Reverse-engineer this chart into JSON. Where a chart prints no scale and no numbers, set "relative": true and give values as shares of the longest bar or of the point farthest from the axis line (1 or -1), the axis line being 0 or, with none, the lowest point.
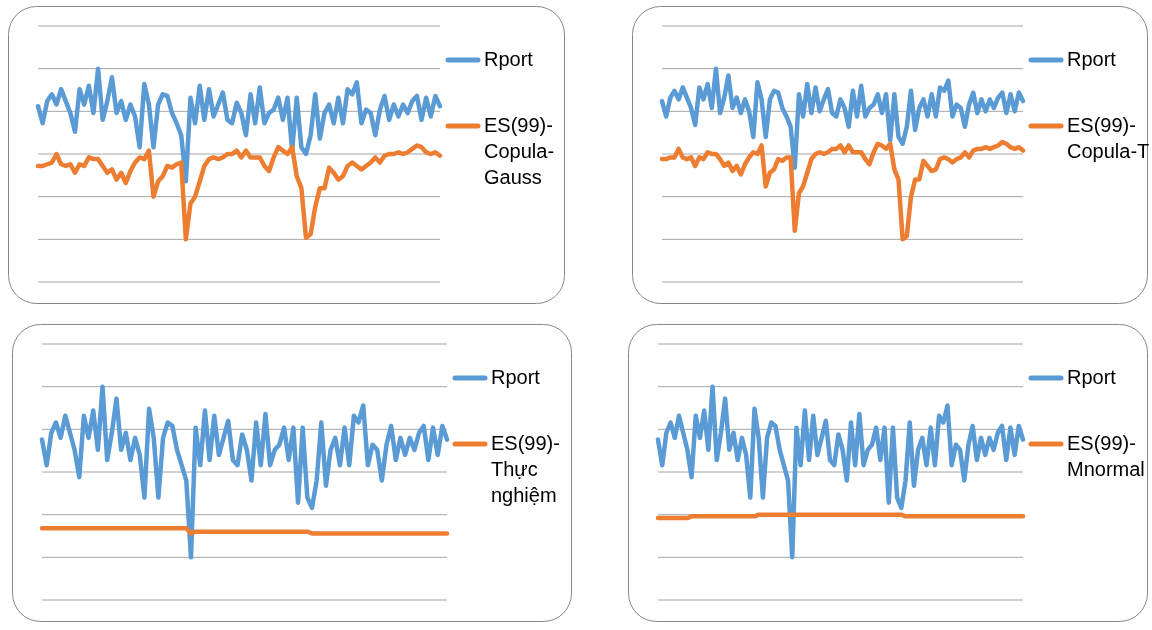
{
  "chart_data": [
    {
      "type": "line",
      "relative": true,
      "grid": true,
      "legend": "right",
      "categories": [
        null,
        null,
        null,
        null,
        null,
        null,
        null,
        null,
        null,
        null,
        null,
        null,
        null,
        null,
        null,
        null,
        null,
        null,
        null,
        null,
        null,
        null,
        null,
        null,
        null,
        null,
        null,
        null,
        null,
        null,
        null,
        null,
        null,
        null,
        null,
        null,
        null,
        null,
        null,
        null,
        null,
        null,
        null,
        null,
        null,
        null,
        null,
        null,
        null,
        null,
        null,
        null,
        null,
        null,
        null,
        null,
        null,
        null,
        null,
        null,
        null,
        null,
        null,
        null,
        null,
        null,
        null,
        null,
        null,
        null,
        null,
        null,
        null,
        null,
        null,
        null,
        null,
        null,
        null,
        null,
        null,
        null,
        null,
        null,
        null,
        null,
        null,
        null
      ],
      "series": [
        {
          "name": "Rport",
          "color": "#5b9bd5",
          "values": [
            0.78,
            0.68,
            0.81,
            0.85,
            0.79,
            0.88,
            0.81,
            0.74,
            0.63,
            0.88,
            0.79,
            0.9,
            0.74,
            1.0,
            0.7,
            0.81,
            0.95,
            0.74,
            0.81,
            0.7,
            0.79,
            0.72,
            0.54,
            0.91,
            0.79,
            0.54,
            0.79,
            0.85,
            0.84,
            0.74,
            0.68,
            0.61,
            0.34,
            0.83,
            0.68,
            0.9,
            0.7,
            0.88,
            0.72,
            0.79,
            0.86,
            0.7,
            0.68,
            0.8,
            0.74,
            0.61,
            0.85,
            0.68,
            0.89,
            0.68,
            0.74,
            0.76,
            0.83,
            0.7,
            0.83,
            0.52,
            0.83,
            0.54,
            0.5,
            0.61,
            0.85,
            0.59,
            0.74,
            0.79,
            0.68,
            0.83,
            0.68,
            0.88,
            0.85,
            0.92,
            0.68,
            0.76,
            0.74,
            0.61,
            0.76,
            0.84,
            0.7,
            0.79,
            0.72,
            0.79,
            0.74,
            0.81,
            0.84,
            0.7,
            0.83,
            0.72,
            0.84,
            0.78
          ]
        },
        {
          "name": "ES(99)-Copula-Gauss",
          "color": "#ed7d31",
          "values": [
            0.43,
            0.43,
            0.44,
            0.45,
            0.5,
            0.44,
            0.43,
            0.44,
            0.39,
            0.44,
            0.43,
            0.48,
            0.47,
            0.47,
            0.43,
            0.39,
            0.41,
            0.35,
            0.39,
            0.33,
            0.4,
            0.45,
            0.48,
            0.47,
            0.52,
            0.25,
            0.34,
            0.37,
            0.43,
            0.42,
            0.44,
            0.45,
            0,
            0.21,
            0.25,
            0.34,
            0.43,
            0.47,
            0.48,
            0.47,
            0.48,
            0.5,
            0.5,
            0.52,
            0.48,
            0.52,
            0.48,
            0.48,
            0.48,
            0.43,
            0.4,
            0.48,
            0.54,
            0.52,
            0.5,
            0.54,
            0.37,
            0.3,
            0.01,
            0.03,
            0.19,
            0.3,
            0.3,
            0.42,
            0.39,
            0.35,
            0.37,
            0.43,
            0.45,
            0.43,
            0.41,
            0.43,
            0.45,
            0.48,
            0.45,
            0.49,
            0.5,
            0.5,
            0.51,
            0.5,
            0.51,
            0.53,
            0.55,
            0.54,
            0.51,
            0.5,
            0.51,
            0.49
          ]
        }
      ]
    },
    {
      "type": "line",
      "relative": true,
      "grid": true,
      "legend": "right",
      "categories": [
        null,
        null,
        null,
        null,
        null,
        null,
        null,
        null,
        null,
        null,
        null,
        null,
        null,
        null,
        null,
        null,
        null,
        null,
        null,
        null,
        null,
        null,
        null,
        null,
        null,
        null,
        null,
        null,
        null,
        null,
        null,
        null,
        null,
        null,
        null,
        null,
        null,
        null,
        null,
        null,
        null,
        null,
        null,
        null,
        null,
        null,
        null,
        null,
        null,
        null,
        null,
        null,
        null,
        null,
        null,
        null,
        null,
        null,
        null,
        null,
        null,
        null,
        null,
        null,
        null,
        null,
        null,
        null,
        null,
        null,
        null,
        null,
        null,
        null,
        null,
        null,
        null,
        null,
        null,
        null,
        null,
        null,
        null,
        null,
        null,
        null,
        null,
        null
      ],
      "series": [
        {
          "name": "Rport",
          "color": "#5b9bd5",
          "values": [
            0.81,
            0.72,
            0.83,
            0.87,
            0.82,
            0.89,
            0.83,
            0.77,
            0.67,
            0.89,
            0.82,
            0.91,
            0.77,
            1.0,
            0.74,
            0.83,
            0.96,
            0.77,
            0.83,
            0.74,
            0.82,
            0.75,
            0.6,
            0.92,
            0.82,
            0.6,
            0.82,
            0.87,
            0.86,
            0.77,
            0.72,
            0.66,
            0.42,
            0.85,
            0.72,
            0.91,
            0.74,
            0.89,
            0.75,
            0.82,
            0.88,
            0.74,
            0.72,
            0.82,
            0.77,
            0.66,
            0.87,
            0.72,
            0.9,
            0.72,
            0.77,
            0.79,
            0.85,
            0.74,
            0.85,
            0.58,
            0.85,
            0.6,
            0.56,
            0.66,
            0.87,
            0.64,
            0.77,
            0.82,
            0.72,
            0.85,
            0.72,
            0.89,
            0.87,
            0.93,
            0.72,
            0.79,
            0.77,
            0.66,
            0.79,
            0.86,
            0.74,
            0.82,
            0.75,
            0.82,
            0.77,
            0.83,
            0.86,
            0.74,
            0.85,
            0.75,
            0.86,
            0.81
          ]
        },
        {
          "name": "ES(99)-Copula-T",
          "color": "#ed7d31",
          "values": [
            0.47,
            0.47,
            0.48,
            0.48,
            0.53,
            0.48,
            0.47,
            0.48,
            0.43,
            0.48,
            0.47,
            0.51,
            0.5,
            0.5,
            0.47,
            0.43,
            0.45,
            0.4,
            0.43,
            0.38,
            0.44,
            0.48,
            0.51,
            0.5,
            0.55,
            0.31,
            0.39,
            0.41,
            0.47,
            0.46,
            0.48,
            0.48,
            0.05,
            0.27,
            0.31,
            0.39,
            0.47,
            0.5,
            0.51,
            0.5,
            0.51,
            0.53,
            0.53,
            0.55,
            0.51,
            0.55,
            0.51,
            0.51,
            0.51,
            0.47,
            0.44,
            0.51,
            0.56,
            0.55,
            0.53,
            0.56,
            0.41,
            0.35,
            0,
            0.02,
            0.25,
            0.35,
            0.35,
            0.46,
            0.43,
            0.4,
            0.41,
            0.47,
            0.48,
            0.47,
            0.45,
            0.47,
            0.48,
            0.51,
            0.48,
            0.52,
            0.53,
            0.53,
            0.54,
            0.53,
            0.54,
            0.55,
            0.57,
            0.56,
            0.54,
            0.53,
            0.54,
            0.52
          ]
        }
      ]
    },
    {
      "type": "line",
      "relative": true,
      "grid": true,
      "legend": "right",
      "categories": [
        null,
        null,
        null,
        null,
        null,
        null,
        null,
        null,
        null,
        null,
        null,
        null,
        null,
        null,
        null,
        null,
        null,
        null,
        null,
        null,
        null,
        null,
        null,
        null,
        null,
        null,
        null,
        null,
        null,
        null,
        null,
        null,
        null,
        null,
        null,
        null,
        null,
        null,
        null,
        null,
        null,
        null,
        null,
        null,
        null,
        null,
        null,
        null,
        null,
        null,
        null,
        null,
        null,
        null,
        null,
        null,
        null,
        null,
        null,
        null,
        null,
        null,
        null,
        null,
        null,
        null,
        null,
        null,
        null,
        null,
        null,
        null,
        null,
        null,
        null,
        null,
        null,
        null,
        null,
        null,
        null,
        null,
        null,
        null,
        null,
        null,
        null,
        null
      ],
      "series": [
        {
          "name": "Rport",
          "color": "#5b9bd5",
          "values": [
            0.69,
            0.54,
            0.73,
            0.79,
            0.7,
            0.83,
            0.73,
            0.63,
            0.47,
            0.83,
            0.7,
            0.86,
            0.63,
            1.0,
            0.57,
            0.73,
            0.93,
            0.63,
            0.73,
            0.57,
            0.7,
            0.6,
            0.35,
            0.87,
            0.7,
            0.35,
            0.7,
            0.79,
            0.77,
            0.63,
            0.54,
            0.45,
            0,
            0.76,
            0.54,
            0.86,
            0.57,
            0.83,
            0.6,
            0.7,
            0.8,
            0.57,
            0.54,
            0.72,
            0.63,
            0.45,
            0.79,
            0.54,
            0.84,
            0.54,
            0.63,
            0.66,
            0.76,
            0.57,
            0.76,
            0.32,
            0.76,
            0.35,
            0.29,
            0.45,
            0.79,
            0.42,
            0.63,
            0.7,
            0.54,
            0.76,
            0.54,
            0.83,
            0.79,
            0.89,
            0.54,
            0.66,
            0.63,
            0.45,
            0.66,
            0.77,
            0.57,
            0.7,
            0.6,
            0.7,
            0.63,
            0.73,
            0.77,
            0.57,
            0.76,
            0.6,
            0.77,
            0.69
          ]
        },
        {
          "name": "ES(99)-Thực nghiệm",
          "color": "#ed7d31",
          "values": [
            0.17,
            0.17,
            0.17,
            0.17,
            0.17,
            0.17,
            0.17,
            0.17,
            0.17,
            0.17,
            0.17,
            0.17,
            0.17,
            0.17,
            0.17,
            0.17,
            0.17,
            0.17,
            0.17,
            0.17,
            0.17,
            0.17,
            0.17,
            0.17,
            0.17,
            0.17,
            0.17,
            0.17,
            0.17,
            0.17,
            0.17,
            0.17,
            0.14,
            0.15,
            0.15,
            0.15,
            0.15,
            0.15,
            0.15,
            0.15,
            0.15,
            0.15,
            0.15,
            0.15,
            0.15,
            0.15,
            0.15,
            0.15,
            0.15,
            0.15,
            0.15,
            0.15,
            0.15,
            0.15,
            0.15,
            0.15,
            0.15,
            0.15,
            0.14,
            0.14,
            0.14,
            0.14,
            0.14,
            0.14,
            0.14,
            0.14,
            0.14,
            0.14,
            0.14,
            0.14,
            0.14,
            0.14,
            0.14,
            0.14,
            0.14,
            0.14,
            0.14,
            0.14,
            0.14,
            0.14,
            0.14,
            0.14,
            0.14,
            0.14,
            0.14,
            0.14,
            0.14,
            0.14
          ]
        }
      ]
    },
    {
      "type": "line",
      "relative": true,
      "grid": true,
      "legend": "right",
      "categories": [
        null,
        null,
        null,
        null,
        null,
        null,
        null,
        null,
        null,
        null,
        null,
        null,
        null,
        null,
        null,
        null,
        null,
        null,
        null,
        null,
        null,
        null,
        null,
        null,
        null,
        null,
        null,
        null,
        null,
        null,
        null,
        null,
        null,
        null,
        null,
        null,
        null,
        null,
        null,
        null,
        null,
        null,
        null,
        null,
        null,
        null,
        null,
        null,
        null,
        null,
        null,
        null,
        null,
        null,
        null,
        null,
        null,
        null,
        null,
        null,
        null,
        null,
        null,
        null,
        null,
        null,
        null,
        null,
        null,
        null,
        null,
        null,
        null,
        null,
        null,
        null,
        null,
        null,
        null,
        null,
        null,
        null,
        null,
        null,
        null,
        null,
        null,
        null
      ],
      "series": [
        {
          "name": "Rport",
          "color": "#5b9bd5",
          "values": [
            0.69,
            0.54,
            0.73,
            0.79,
            0.7,
            0.83,
            0.73,
            0.63,
            0.47,
            0.83,
            0.7,
            0.86,
            0.63,
            1.0,
            0.57,
            0.73,
            0.93,
            0.63,
            0.73,
            0.57,
            0.7,
            0.6,
            0.35,
            0.87,
            0.7,
            0.35,
            0.7,
            0.79,
            0.77,
            0.63,
            0.54,
            0.45,
            0,
            0.76,
            0.54,
            0.86,
            0.57,
            0.83,
            0.6,
            0.7,
            0.8,
            0.57,
            0.54,
            0.72,
            0.63,
            0.45,
            0.79,
            0.54,
            0.84,
            0.54,
            0.63,
            0.66,
            0.76,
            0.57,
            0.76,
            0.32,
            0.76,
            0.35,
            0.29,
            0.45,
            0.79,
            0.42,
            0.63,
            0.7,
            0.54,
            0.76,
            0.54,
            0.83,
            0.79,
            0.89,
            0.54,
            0.66,
            0.63,
            0.45,
            0.66,
            0.77,
            0.57,
            0.7,
            0.6,
            0.7,
            0.63,
            0.73,
            0.77,
            0.57,
            0.76,
            0.6,
            0.77,
            0.69
          ]
        },
        {
          "name": "ES(99)-Mnormal",
          "color": "#ed7d31",
          "values": [
            0.23,
            0.23,
            0.23,
            0.23,
            0.23,
            0.23,
            0.23,
            0.23,
            0.24,
            0.24,
            0.24,
            0.24,
            0.24,
            0.24,
            0.24,
            0.24,
            0.24,
            0.24,
            0.24,
            0.24,
            0.24,
            0.24,
            0.24,
            0.24,
            0.25,
            0.25,
            0.25,
            0.25,
            0.25,
            0.25,
            0.25,
            0.25,
            0.25,
            0.25,
            0.25,
            0.25,
            0.25,
            0.25,
            0.25,
            0.25,
            0.25,
            0.25,
            0.25,
            0.25,
            0.25,
            0.25,
            0.25,
            0.25,
            0.25,
            0.25,
            0.25,
            0.25,
            0.25,
            0.25,
            0.25,
            0.25,
            0.25,
            0.25,
            0.25,
            0.24,
            0.24,
            0.24,
            0.24,
            0.24,
            0.24,
            0.24,
            0.24,
            0.24,
            0.24,
            0.24,
            0.24,
            0.24,
            0.24,
            0.24,
            0.24,
            0.24,
            0.24,
            0.24,
            0.24,
            0.24,
            0.24,
            0.24,
            0.24,
            0.24,
            0.24,
            0.24,
            0.24,
            0.24
          ]
        }
      ]
    }
  ]
}
